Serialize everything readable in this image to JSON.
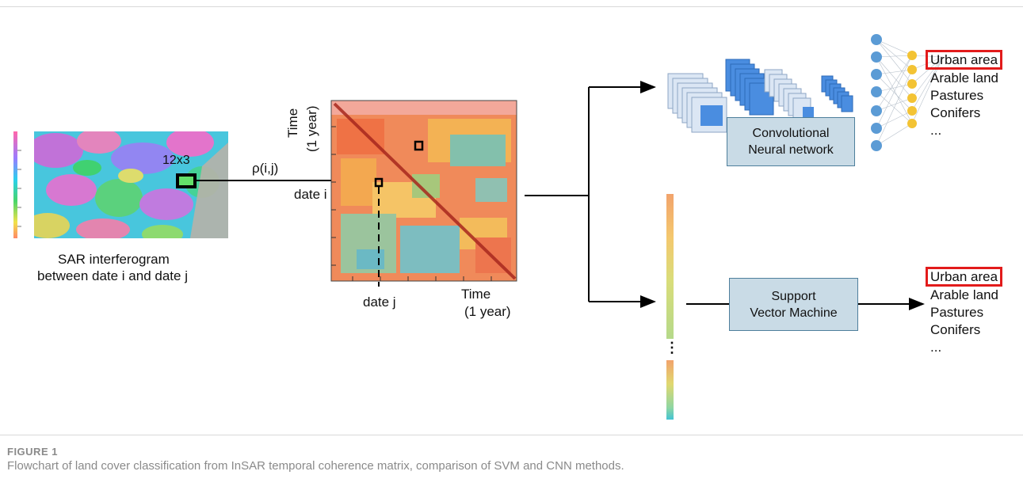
{
  "interferogram": {
    "label_line1": "SAR interferogram",
    "label_line2": "between date i and date j",
    "window_label": "12x3"
  },
  "arrow_label": "ρ(i,j)",
  "matrix": {
    "y_axis_line1": "Time",
    "y_axis_line2": "(1 year)",
    "date_i": "date i",
    "date_j": "date j",
    "x_axis_line1": "Time",
    "x_axis_line2": "(1 year)"
  },
  "cnn_box": {
    "line1": "Convolutional",
    "line2": "Neural network"
  },
  "svm_box": {
    "line1": "Support",
    "line2": "Vector Machine"
  },
  "cnn_classes": [
    "Urban area",
    "Arable land",
    "Pastures",
    "Conifers",
    "..."
  ],
  "svm_classes": [
    "Urban area",
    "Arable land",
    "Pastures",
    "Conifers",
    "..."
  ],
  "vector_ellipsis": "⋮",
  "caption": {
    "label": "FIGURE 1",
    "text": "Flowchart of land cover classification from InSAR temporal coherence matrix, comparison of SVM and CNN methods."
  },
  "colors": {
    "highlight": "#e21b1b",
    "box_fill": "#c9dbe6",
    "node_blue": "#5b9bd5",
    "node_yellow": "#f3c334",
    "arrow": "#000000"
  }
}
